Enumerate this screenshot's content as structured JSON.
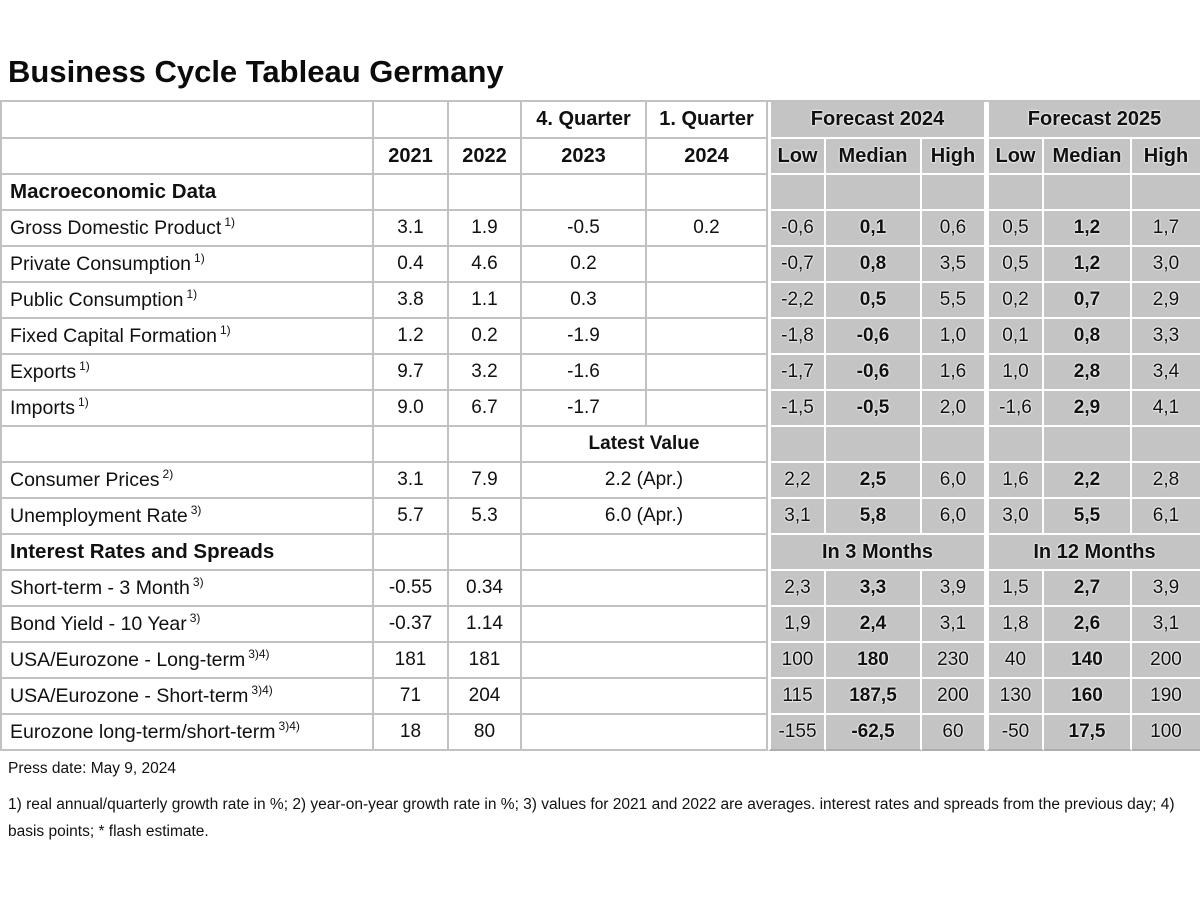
{
  "title": "Business Cycle Tableau Germany",
  "colors": {
    "forecast_bg": "#c4c4c4",
    "grid_line": "#c2c2c2",
    "text": "#111111"
  },
  "table": {
    "top_header": {
      "q4": "4. Quarter",
      "q1": "1. Quarter",
      "forecast_2024": "Forecast 2024",
      "forecast_2025": "Forecast 2025"
    },
    "col_header": {
      "years": [
        "2021",
        "2022",
        "2023",
        "2024"
      ],
      "cols": [
        "Low",
        "Median",
        "High"
      ]
    },
    "rows": [
      {
        "type": "section",
        "label": "Macroeconomic Data"
      },
      {
        "type": "data",
        "label": "Gross Domestic Product",
        "sup": "1)",
        "y2021": "3.1",
        "y2022": "1.9",
        "q4": "-0.5",
        "q1": "0.2",
        "forecast": [
          "-0,6",
          "0,1",
          "0,6",
          "0,5",
          "1,2",
          "1,7"
        ]
      },
      {
        "type": "data",
        "label": "Private Consumption",
        "sup": "1)",
        "y2021": "0.4",
        "y2022": "4.6",
        "q4": "0.2",
        "q1": "",
        "forecast": [
          "-0,7",
          "0,8",
          "3,5",
          "0,5",
          "1,2",
          "3,0"
        ]
      },
      {
        "type": "data",
        "label": "Public Consumption",
        "sup": "1)",
        "y2021": "3.8",
        "y2022": "1.1",
        "q4": "0.3",
        "q1": "",
        "forecast": [
          "-2,2",
          "0,5",
          "5,5",
          "0,2",
          "0,7",
          "2,9"
        ]
      },
      {
        "type": "data",
        "label": "Fixed Capital Formation",
        "sup": "1)",
        "y2021": "1.2",
        "y2022": "0.2",
        "q4": "-1.9",
        "q1": "",
        "forecast": [
          "-1,8",
          "-0,6",
          "1,0",
          "0,1",
          "0,8",
          "3,3"
        ]
      },
      {
        "type": "data",
        "label": "Exports",
        "sup": "1)",
        "y2021": "9.7",
        "y2022": "3.2",
        "q4": "-1.6",
        "q1": "",
        "forecast": [
          "-1,7",
          "-0,6",
          "1,6",
          "1,0",
          "2,8",
          "3,4"
        ]
      },
      {
        "type": "data",
        "label": "Imports",
        "sup": "1)",
        "y2021": "9.0",
        "y2022": "6.7",
        "q4": "-1.7",
        "q1": "",
        "forecast": [
          "-1,5",
          "-0,5",
          "2,0",
          "-1,6",
          "2,9",
          "4,1"
        ]
      },
      {
        "type": "subheader",
        "latest": "Latest Value"
      },
      {
        "type": "data",
        "label": "Consumer Prices",
        "sup": "2)",
        "y2021": "3.1",
        "y2022": "7.9",
        "merged": "2.2 (Apr.)",
        "forecast": [
          "2,2",
          "2,5",
          "6,0",
          "1,6",
          "2,2",
          "2,8"
        ]
      },
      {
        "type": "data",
        "label": "Unemployment Rate",
        "sup": "3)",
        "y2021": "5.7",
        "y2022": "5.3",
        "merged": "6.0 (Apr.)",
        "forecast": [
          "3,1",
          "5,8",
          "6,0",
          "3,0",
          "5,5",
          "6,1"
        ]
      },
      {
        "type": "section2",
        "label": "Interest Rates and Spreads",
        "span1": "In 3 Months",
        "span2": "In 12 Months"
      },
      {
        "type": "data",
        "label": "Short-term - 3 Month",
        "sup": "3)",
        "y2021": "-0.55",
        "y2022": "0.34",
        "merged": "",
        "forecast": [
          "2,3",
          "3,3",
          "3,9",
          "1,5",
          "2,7",
          "3,9"
        ]
      },
      {
        "type": "data",
        "label": "Bond Yield - 10 Year",
        "sup": "3)",
        "y2021": "-0.37",
        "y2022": "1.14",
        "merged": "",
        "forecast": [
          "1,9",
          "2,4",
          "3,1",
          "1,8",
          "2,6",
          "3,1"
        ]
      },
      {
        "type": "data",
        "label": "USA/Eurozone - Long-term",
        "sup": "3)4)",
        "y2021": "181",
        "y2022": "181",
        "merged": "",
        "forecast": [
          "100",
          "180",
          "230",
          "40",
          "140",
          "200"
        ]
      },
      {
        "type": "data",
        "label": "USA/Eurozone - Short-term",
        "sup": "3)4)",
        "y2021": "71",
        "y2022": "204",
        "merged": "",
        "forecast": [
          "115",
          "187,5",
          "200",
          "130",
          "160",
          "190"
        ]
      },
      {
        "type": "data",
        "label": "Eurozone long-term/short-term",
        "sup": "3)4)",
        "y2021": "18",
        "y2022": "80",
        "merged": "",
        "forecast": [
          "-155",
          "-62,5",
          "60",
          "-50",
          "17,5",
          "100"
        ]
      }
    ]
  },
  "footer": {
    "press_date": "Press date: May 9, 2024",
    "footnotes": "1) real annual/quarterly growth rate in %; 2) year-on-year growth rate in %; 3) values for 2021 and 2022 are averages. interest rates and spreads from the previous day; 4) basis points; * flash estimate."
  }
}
